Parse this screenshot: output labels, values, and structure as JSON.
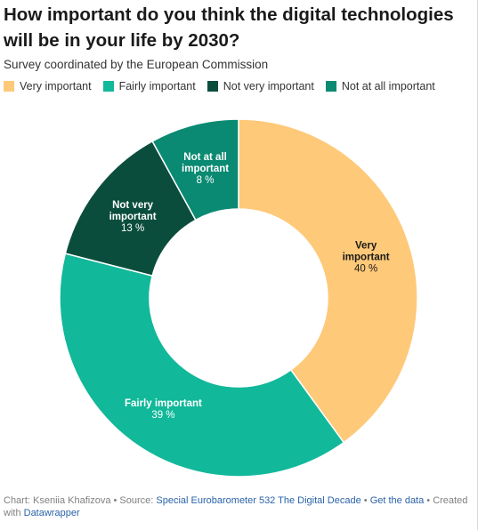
{
  "header": {
    "title": "How important do you think the digital technologies will be in your life by 2030?",
    "subtitle": "Survey coordinated by the European Commission"
  },
  "chart_data": {
    "type": "pie",
    "style": "donut",
    "categories": [
      "Very important",
      "Fairly important",
      "Not very important",
      "Not at all important"
    ],
    "values": [
      40,
      39,
      13,
      8
    ],
    "unit": "%",
    "colors": [
      "#fec978",
      "#11b89a",
      "#0b4d3c",
      "#0a8a72"
    ],
    "label_colors": [
      "#1a1a1a",
      "#ffffff",
      "#ffffff",
      "#ffffff"
    ],
    "slice_labels": [
      {
        "lines": [
          "Very",
          "important"
        ],
        "value": "40 %"
      },
      {
        "lines": [
          "Fairly important"
        ],
        "value": "39 %"
      },
      {
        "lines": [
          "Not very",
          "important"
        ],
        "value": "13 %"
      },
      {
        "lines": [
          "Not at all",
          "important"
        ],
        "value": "8 %"
      }
    ],
    "legend_position": "top-left"
  },
  "footer": {
    "prefix": "Chart: Kseniia Khafizova • Source: ",
    "source_link": "Special Eurobarometer 532 The Digital Decade",
    "sep1": " • ",
    "data_link": "Get the data",
    "sep2": " • Created with ",
    "tool_link": "Datawrapper"
  }
}
